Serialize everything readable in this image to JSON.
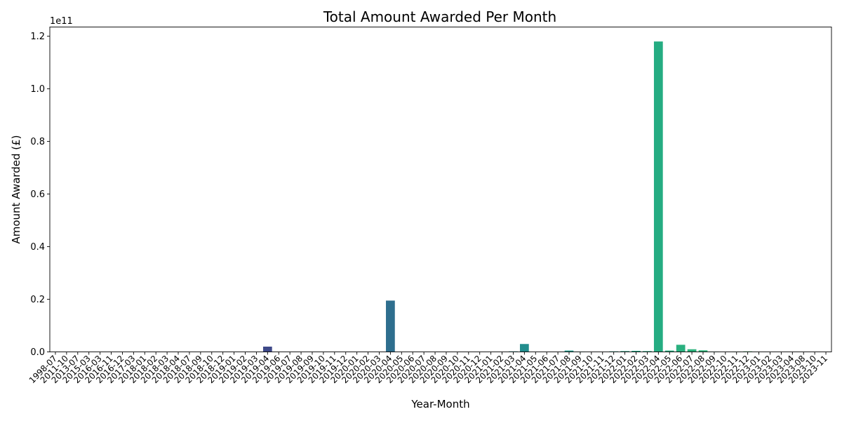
{
  "chart_data": {
    "type": "bar",
    "title": "Total Amount Awarded Per Month",
    "xlabel": "Year-Month",
    "ylabel": "Amount Awarded (£)",
    "y_offset_label": "1e11",
    "ylim": [
      0,
      1.235
    ],
    "yticks": [
      "0.0",
      "0.2",
      "0.4",
      "0.6",
      "0.8",
      "1.0",
      "1.2"
    ],
    "ytick_values": [
      0,
      0.2,
      0.4,
      0.6,
      0.8,
      1.0,
      1.2
    ],
    "categories": [
      "1998-07",
      "2011-10",
      "2013-07",
      "2015-03",
      "2016-03",
      "2016-11",
      "2016-12",
      "2017-03",
      "2018-01",
      "2018-02",
      "2018-03",
      "2018-04",
      "2018-07",
      "2018-09",
      "2018-10",
      "2018-12",
      "2019-01",
      "2019-02",
      "2019-03",
      "2019-04",
      "2019-06",
      "2019-07",
      "2019-08",
      "2019-09",
      "2019-10",
      "2019-11",
      "2019-12",
      "2020-01",
      "2020-02",
      "2020-03",
      "2020-04",
      "2020-05",
      "2020-06",
      "2020-07",
      "2020-08",
      "2020-09",
      "2020-10",
      "2020-11",
      "2020-12",
      "2021-01",
      "2021-02",
      "2021-03",
      "2021-04",
      "2021-05",
      "2021-06",
      "2021-07",
      "2021-08",
      "2021-09",
      "2021-10",
      "2021-11",
      "2021-12",
      "2022-01",
      "2022-02",
      "2022-03",
      "2022-04",
      "2022-05",
      "2022-06",
      "2022-07",
      "2022-08",
      "2022-09",
      "2022-10",
      "2022-11",
      "2022-12",
      "2023-01",
      "2023-02",
      "2023-03",
      "2023-04",
      "2023-08",
      "2023-10",
      "2023-11"
    ],
    "values": [
      0,
      0,
      0,
      0,
      0,
      0,
      0,
      0,
      0,
      0,
      0,
      0,
      0,
      0,
      0,
      0,
      0,
      0,
      0,
      0.02,
      0,
      0,
      0,
      0,
      0,
      0,
      0,
      0,
      0,
      0,
      0.195,
      0,
      0,
      0,
      0,
      0,
      0,
      0,
      0,
      0,
      0,
      0.002,
      0.03,
      0,
      0,
      0,
      0.005,
      0.001,
      0,
      0,
      0.002,
      0.003,
      0.004,
      0.003,
      1.18,
      0.005,
      0.027,
      0.01,
      0.006,
      0.001,
      0,
      0.001,
      0.002,
      0,
      0,
      0,
      0,
      0,
      0,
      0
    ],
    "colors": [
      "#440154",
      "#450559",
      "#46085c",
      "#470d60",
      "#471063",
      "#481467",
      "#48186a",
      "#481b6d",
      "#481f70",
      "#482374",
      "#482677",
      "#472a7a",
      "#472d7b",
      "#46307e",
      "#453581",
      "#443983",
      "#433e85",
      "#424086",
      "#404588",
      "#3e4989",
      "#3c4d8a",
      "#3b518b",
      "#39558c",
      "#38588c",
      "#365c8d",
      "#34608d",
      "#33638d",
      "#31678e",
      "#306a8e",
      "#2f6e8e",
      "#2e6e8e",
      "#2d718e",
      "#2c728e",
      "#2b758e",
      "#2a788e",
      "#297b8e",
      "#287d8e",
      "#27808e",
      "#26828e",
      "#25858e",
      "#24878e",
      "#238a8d",
      "#228d8d",
      "#21918c",
      "#20938c",
      "#1f968b",
      "#1f998a",
      "#1f9a8a",
      "#1e9d89",
      "#1fa088",
      "#1fa287",
      "#21a585",
      "#22a785",
      "#24aa83",
      "#25ac82",
      "#28ae80",
      "#2ab07f",
      "#2db27d",
      "#31b57b",
      "#35b779",
      "#3bbb75",
      "#40bd72",
      "#46c06f",
      "#4ac16d",
      "#50c46a",
      "#56c667",
      "#5cc863",
      "#63cb5f",
      "#6ccd5a",
      "#75d054"
    ]
  }
}
